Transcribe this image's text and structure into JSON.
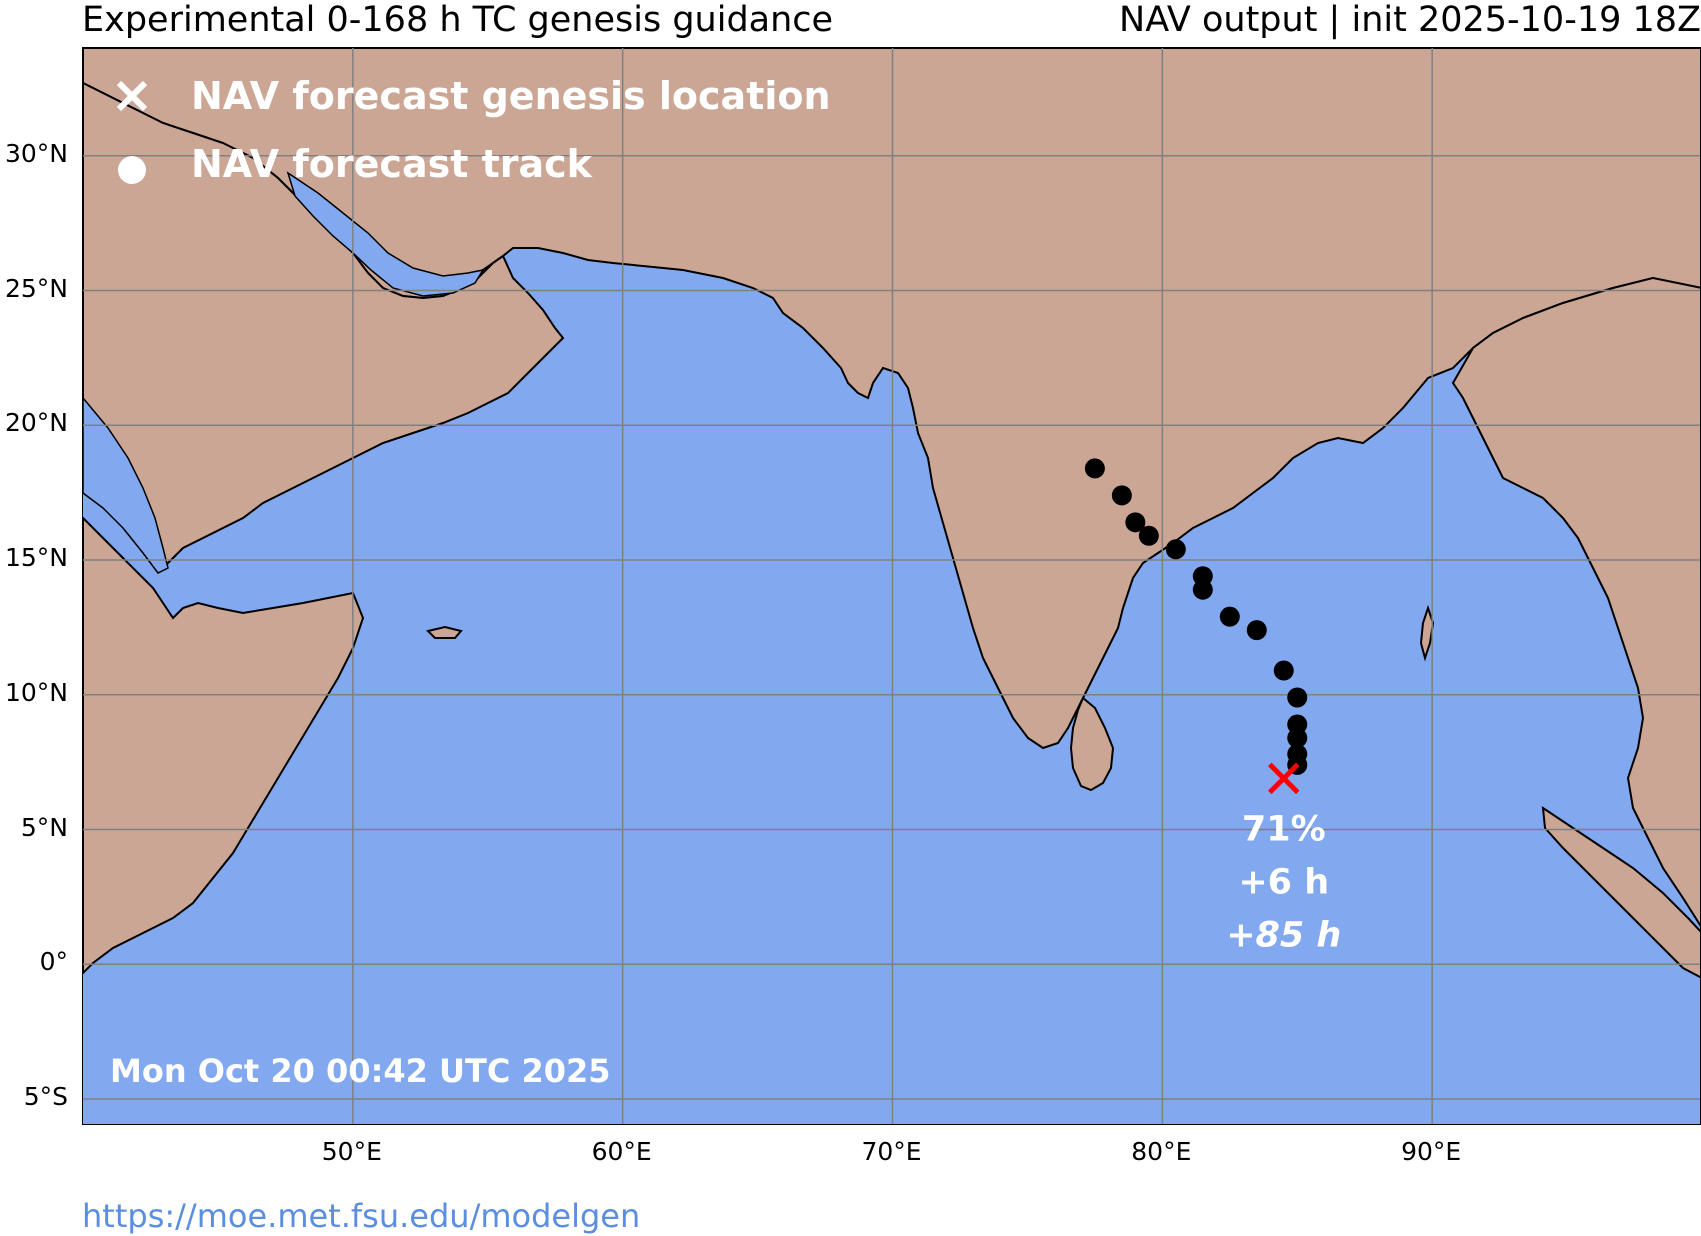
{
  "header": {
    "title_left": "Experimental 0-168 h TC genesis guidance",
    "title_right": "NAV output | init 2025-10-19 18Z"
  },
  "map": {
    "extent": {
      "lon_min": 40,
      "lon_max": 100,
      "lat_min": -6,
      "lat_max": 34
    },
    "gridline_lats": [
      -5,
      0,
      5,
      10,
      15,
      20,
      25,
      30
    ],
    "gridline_lons": [
      50,
      60,
      70,
      80,
      90
    ],
    "lat_labels": [
      "30°N",
      "25°N",
      "20°N",
      "15°N",
      "10°N",
      "5°N",
      "0°",
      "5°S"
    ],
    "lon_labels": [
      "50°E",
      "60°E",
      "70°E",
      "80°E",
      "90°E"
    ],
    "colors": {
      "ocean": "#82a8ef",
      "land": "#cba695",
      "coast": "#000000",
      "grid": "#808080",
      "genesis_marker": "#ff0000",
      "track_marker": "#000000"
    }
  },
  "legend": {
    "genesis_label": "NAV forecast genesis location",
    "track_label": "NAV forecast track",
    "genesis_icon": "x-cross-icon",
    "track_icon": "filled-circle-icon"
  },
  "forecast": {
    "genesis": {
      "lon": 84.5,
      "lat": 6.9
    },
    "probability": "71%",
    "lead_time": "+6 h",
    "duration": "+85 h",
    "track": [
      {
        "lon": 85.0,
        "lat": 7.4
      },
      {
        "lon": 85.0,
        "lat": 7.8
      },
      {
        "lon": 85.0,
        "lat": 8.4
      },
      {
        "lon": 85.0,
        "lat": 8.9
      },
      {
        "lon": 85.0,
        "lat": 9.9
      },
      {
        "lon": 84.5,
        "lat": 10.9
      },
      {
        "lon": 83.5,
        "lat": 12.4
      },
      {
        "lon": 82.5,
        "lat": 12.9
      },
      {
        "lon": 81.5,
        "lat": 13.9
      },
      {
        "lon": 81.5,
        "lat": 14.4
      },
      {
        "lon": 80.5,
        "lat": 15.4
      },
      {
        "lon": 79.5,
        "lat": 15.9
      },
      {
        "lon": 79.0,
        "lat": 16.4
      },
      {
        "lon": 78.5,
        "lat": 17.4
      },
      {
        "lon": 77.5,
        "lat": 18.4
      }
    ]
  },
  "timestamp": "Mon Oct 20 00:42 UTC 2025",
  "footer": {
    "url": "https://moe.met.fsu.edu/modelgen"
  }
}
